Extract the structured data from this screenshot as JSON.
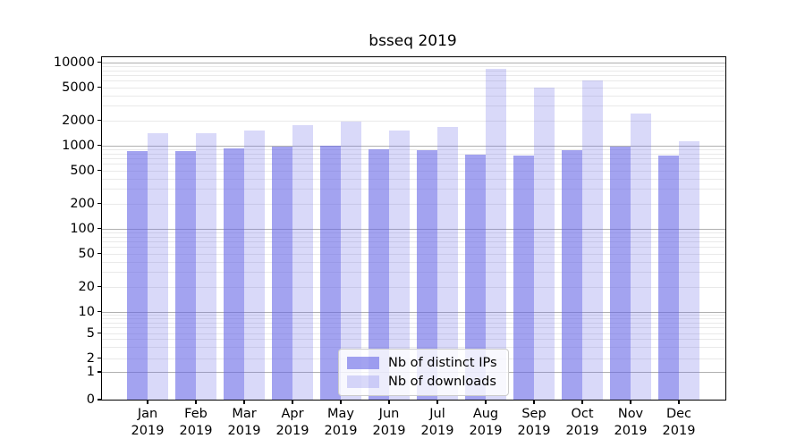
{
  "chart_data": {
    "type": "bar",
    "title": "bsseq 2019",
    "months": [
      "Jan",
      "Feb",
      "Mar",
      "Apr",
      "May",
      "Jun",
      "Jul",
      "Aug",
      "Sep",
      "Oct",
      "Nov",
      "Dec"
    ],
    "year": "2019",
    "series": [
      {
        "name": "Nb of distinct IPs",
        "values": [
          850,
          855,
          920,
          955,
          990,
          890,
          870,
          775,
          745,
          875,
          960,
          760
        ]
      },
      {
        "name": "Nb of downloads",
        "values": [
          1390,
          1410,
          1520,
          1760,
          1910,
          1510,
          1650,
          8300,
          4950,
          6100,
          2400,
          1130
        ]
      }
    ],
    "y_ticks": [
      10000,
      5000,
      2000,
      1000,
      500,
      200,
      100,
      50,
      20,
      10,
      5,
      2,
      1,
      0
    ],
    "y_scale": "symlog",
    "ylim": [
      0,
      11500
    ],
    "grid": true,
    "legend_position": "lower center"
  },
  "colors": {
    "series_base": "#6666e6",
    "distinct_ips_fill": "rgba(102,102,230,0.6)",
    "downloads_fill": "rgba(102,102,230,0.25)",
    "major_gridline": "#b0b0b0",
    "minor_gridline": "#e9e9e9",
    "axis": "#000000",
    "background": "#ffffff"
  }
}
